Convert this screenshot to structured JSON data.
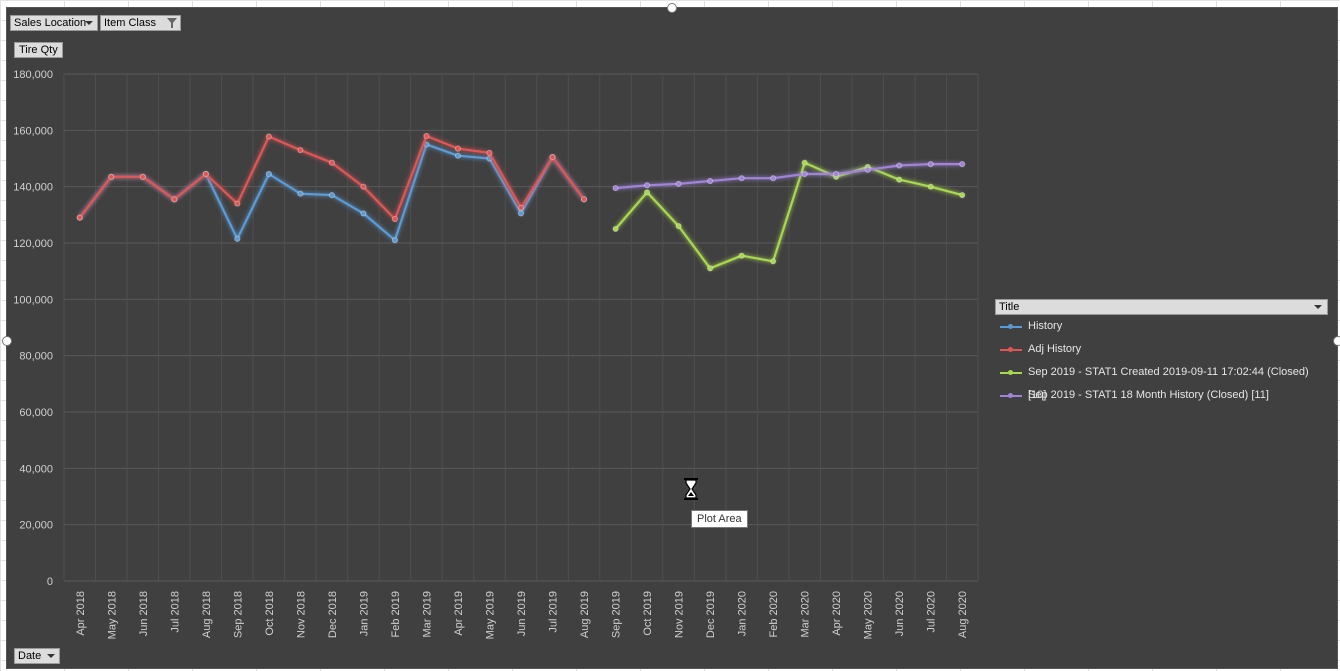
{
  "filters": {
    "sales_location": "Sales Location",
    "item_class": "Item Class",
    "date": "Date"
  },
  "y_field": "Tire Qty",
  "legend": {
    "title": "Title"
  },
  "tooltip": "Plot Area",
  "chart_data": {
    "type": "line",
    "title": "",
    "xlabel": "",
    "ylabel": "Tire Qty",
    "ylim": [
      0,
      180000
    ],
    "yticks": [
      0,
      20000,
      40000,
      60000,
      80000,
      100000,
      120000,
      140000,
      160000,
      180000
    ],
    "grid": true,
    "legend_position": "right",
    "categories": [
      "Apr 2018",
      "May 2018",
      "Jun 2018",
      "Jul 2018",
      "Aug 2018",
      "Sep 2018",
      "Oct 2018",
      "Nov 2018",
      "Dec 2018",
      "Jan 2019",
      "Feb 2019",
      "Mar 2019",
      "Apr 2019",
      "May 2019",
      "Jun 2019",
      "Jul 2019",
      "Aug 2019",
      "Sep 2019",
      "Oct 2019",
      "Nov 2019",
      "Dec 2019",
      "Jan 2020",
      "Feb 2020",
      "Mar 2020",
      "Apr 2020",
      "May 2020",
      "Jun 2020",
      "Jul 2020",
      "Aug 2020"
    ],
    "series": [
      {
        "name": "History",
        "color": "#5b9bd5",
        "values": [
          129000,
          143500,
          143500,
          135500,
          144500,
          121500,
          144500,
          137500,
          137000,
          130500,
          121000,
          155000,
          151000,
          150000,
          130500,
          150500,
          135500,
          null,
          null,
          null,
          null,
          null,
          null,
          null,
          null,
          null,
          null,
          null,
          null
        ]
      },
      {
        "name": "Adj History",
        "color": "#e05555",
        "values": [
          129000,
          143500,
          143500,
          135500,
          144500,
          134000,
          157800,
          153000,
          148500,
          140000,
          128500,
          158000,
          153500,
          152000,
          132500,
          150500,
          135500,
          null,
          null,
          null,
          null,
          null,
          null,
          null,
          null,
          null,
          null,
          null,
          null
        ]
      },
      {
        "name": "Sep 2019 - STAT1 Created 2019-09-11 17:02:44 (Closed) [10]",
        "color": "#a9d84f",
        "values": [
          null,
          null,
          null,
          null,
          null,
          null,
          null,
          null,
          null,
          null,
          null,
          null,
          null,
          null,
          null,
          null,
          null,
          125000,
          138000,
          126000,
          111000,
          115500,
          113500,
          148500,
          143500,
          147000,
          142500,
          140000,
          137000
        ]
      },
      {
        "name": "Sep 2019 - STAT1 18 Month History (Closed) [11]",
        "color": "#a184d8",
        "values": [
          null,
          null,
          null,
          null,
          null,
          null,
          null,
          null,
          null,
          null,
          null,
          null,
          null,
          null,
          null,
          null,
          null,
          139500,
          140500,
          141000,
          142000,
          143000,
          143000,
          144500,
          144500,
          146000,
          147500,
          148000,
          148000
        ]
      }
    ]
  }
}
